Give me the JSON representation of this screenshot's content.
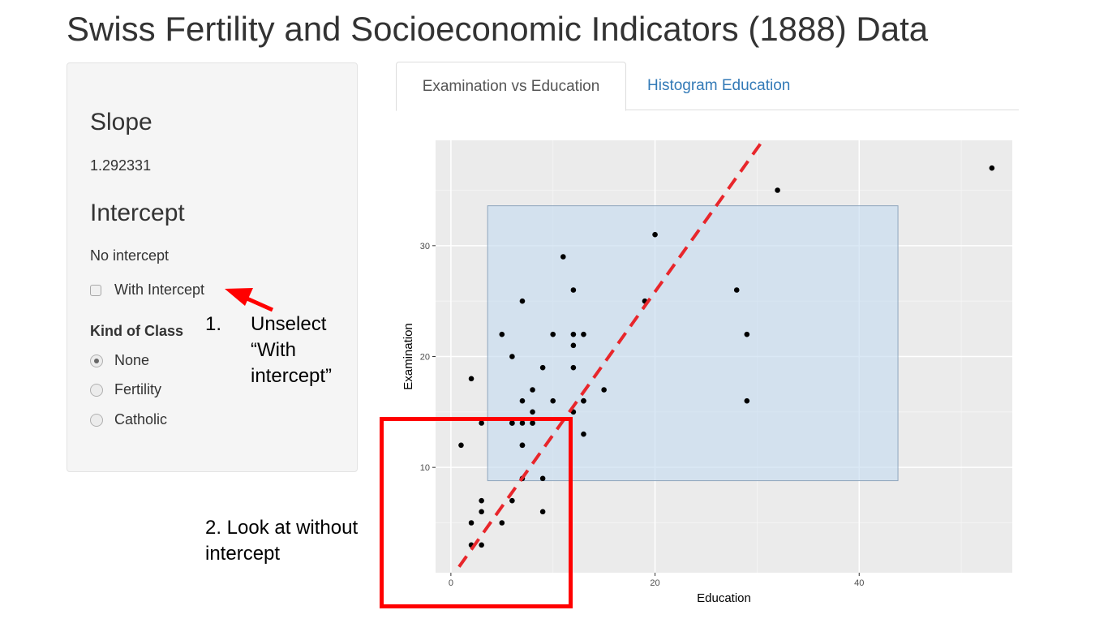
{
  "page": {
    "title": "Swiss Fertility and Socioeconomic Indicators (1888) Data"
  },
  "sidebar": {
    "slope_heading": "Slope",
    "slope_value": "1.292331",
    "intercept_heading": "Intercept",
    "intercept_value": "No intercept",
    "with_intercept": {
      "label": "With Intercept",
      "checked": false
    },
    "kind_of_class": {
      "label": "Kind of Class",
      "options": [
        {
          "label": "None",
          "checked": true
        },
        {
          "label": "Fertility",
          "checked": false
        },
        {
          "label": "Catholic",
          "checked": false
        }
      ]
    }
  },
  "tabs": [
    {
      "label": "Examination vs Education",
      "active": true
    },
    {
      "label": "Histogram Education",
      "active": false
    }
  ],
  "annotations": {
    "step1_number": "1.",
    "step1_text_line1": "Unselect",
    "step1_text_line2": "“With",
    "step1_text_line3": "intercept”",
    "step2_line1": "2. Look at without",
    "step2_line2": "intercept",
    "color": "#ff0000"
  },
  "chart_data": {
    "type": "scatter",
    "xlabel": "Education",
    "ylabel": "Examination",
    "xlim": [
      -1.5,
      55
    ],
    "ylim": [
      0.5,
      39.5
    ],
    "xticks": [
      0,
      20,
      40
    ],
    "yticks": [
      10,
      20,
      30
    ],
    "grid": true,
    "panel_color": "#ebebeb",
    "point_color": "#000000",
    "points": [
      [
        12,
        15
      ],
      [
        9,
        6
      ],
      [
        5,
        5
      ],
      [
        7,
        12
      ],
      [
        15,
        17
      ],
      [
        7,
        9
      ],
      [
        7,
        16
      ],
      [
        8,
        14
      ],
      [
        7,
        12
      ],
      [
        13,
        16
      ],
      [
        6,
        14
      ],
      [
        12,
        21
      ],
      [
        7,
        14
      ],
      [
        12,
        19
      ],
      [
        5,
        22
      ],
      [
        2,
        18
      ],
      [
        8,
        17
      ],
      [
        28,
        26
      ],
      [
        20,
        31
      ],
      [
        9,
        19
      ],
      [
        10,
        22
      ],
      [
        3,
        14
      ],
      [
        12,
        22
      ],
      [
        6,
        20
      ],
      [
        1,
        12
      ],
      [
        8,
        14
      ],
      [
        3,
        6
      ],
      [
        10,
        16
      ],
      [
        19,
        25
      ],
      [
        8,
        15
      ],
      [
        2,
        3
      ],
      [
        6,
        7
      ],
      [
        2,
        5
      ],
      [
        6,
        14
      ],
      [
        3,
        7
      ],
      [
        9,
        9
      ],
      [
        3,
        3
      ],
      [
        13,
        13
      ],
      [
        12,
        26
      ],
      [
        7,
        25
      ],
      [
        13,
        22
      ],
      [
        11,
        29
      ],
      [
        13,
        16
      ],
      [
        32,
        35
      ],
      [
        53,
        37
      ],
      [
        29,
        22
      ],
      [
        29,
        16
      ]
    ],
    "fit_line": {
      "slope": 1.292331,
      "intercept": 0,
      "color": "#e8262b",
      "style": "dashed"
    },
    "brush_region": {
      "xmin": 3.6,
      "xmax": 43.8,
      "ymin": 8.8,
      "ymax": 33.6,
      "fill": "#c6dbef"
    }
  }
}
